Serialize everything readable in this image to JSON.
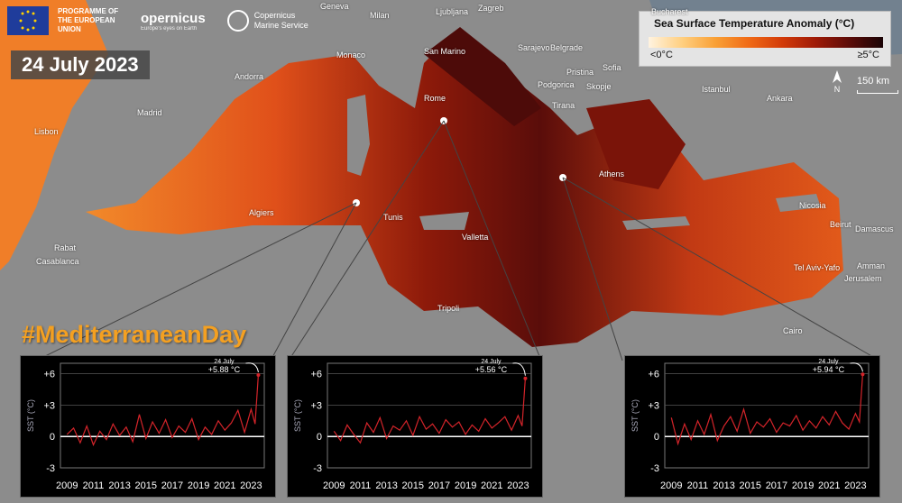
{
  "header": {
    "eu_programme": "PROGRAMME OF THE EUROPEAN UNION",
    "copernicus_name": "opernicus",
    "copernicus_tagline": "Europe's eyes on Earth",
    "cmems_name": "Copernicus Marine Service"
  },
  "date_label": "24 July 2023",
  "hashtag": "#MediterraneanDay",
  "legend": {
    "title": "Sea Surface Temperature Anomaly (°C)",
    "min_label": "<0°C",
    "max_label": "≥5°C",
    "colors": [
      "#fff3e0",
      "#ffcf80",
      "#f9a035",
      "#f06a16",
      "#d23a08",
      "#9e1a07",
      "#5c0c08",
      "#1a0406"
    ]
  },
  "north_label": "N",
  "scale_label": "150 km",
  "cities": [
    {
      "name": "Geneva"
    },
    {
      "name": "Milan"
    },
    {
      "name": "Ljubljana"
    },
    {
      "name": "Zagreb"
    },
    {
      "name": "Bucharest"
    },
    {
      "name": "Belgrade"
    },
    {
      "name": "Sarajevo"
    },
    {
      "name": "San Marino"
    },
    {
      "name": "Monaco"
    },
    {
      "name": "Andorra"
    },
    {
      "name": "Sofia"
    },
    {
      "name": "Pristina"
    },
    {
      "name": "Podgorica"
    },
    {
      "name": "Skopje"
    },
    {
      "name": "Tirana"
    },
    {
      "name": "Istanbul"
    },
    {
      "name": "Ankara"
    },
    {
      "name": "Madrid"
    },
    {
      "name": "Rome"
    },
    {
      "name": "Lisbon"
    },
    {
      "name": "Athens"
    },
    {
      "name": "Algiers"
    },
    {
      "name": "Tunis"
    },
    {
      "name": "Nicosia"
    },
    {
      "name": "Beirut"
    },
    {
      "name": "Damascus"
    },
    {
      "name": "Valletta"
    },
    {
      "name": "Rabat"
    },
    {
      "name": "Casablanca"
    },
    {
      "name": "Tel Aviv-Yafo"
    },
    {
      "name": "Amman"
    },
    {
      "name": "Jerusalem"
    },
    {
      "name": "Tripoli"
    },
    {
      "name": "Cairo"
    }
  ],
  "chart_data": [
    {
      "type": "line",
      "ylabel": "SST (°C)",
      "yticks": [
        "+6",
        "+3",
        "0",
        "-3"
      ],
      "ylim": [
        -3,
        7
      ],
      "xticks": [
        "2009",
        "2011",
        "2013",
        "2015",
        "2017",
        "2019",
        "2021",
        "2023"
      ],
      "xlim": [
        2008.5,
        2024
      ],
      "annotation": {
        "date": "24 July",
        "value_label": "+5.88 °C"
      },
      "series": [
        {
          "color": "#d4242a",
          "x": [
            2009.0,
            2009.5,
            2010.0,
            2010.5,
            2011.0,
            2011.5,
            2012.0,
            2012.5,
            2013.0,
            2013.5,
            2014.0,
            2014.5,
            2015.0,
            2015.5,
            2016.0,
            2016.5,
            2017.0,
            2017.5,
            2018.0,
            2018.5,
            2019.0,
            2019.5,
            2020.0,
            2020.5,
            2021.0,
            2021.5,
            2022.0,
            2022.5,
            2023.0,
            2023.3,
            2023.55
          ],
          "y": [
            0.2,
            0.8,
            -0.6,
            1.0,
            -0.8,
            0.5,
            -0.3,
            1.2,
            0.1,
            0.9,
            -0.5,
            2.1,
            -0.2,
            1.4,
            0.3,
            1.6,
            -0.1,
            1.0,
            0.4,
            1.7,
            -0.3,
            0.9,
            0.2,
            1.5,
            0.6,
            1.3,
            2.5,
            0.4,
            2.6,
            1.2,
            5.88
          ]
        }
      ]
    },
    {
      "type": "line",
      "ylabel": "SST (°C)",
      "yticks": [
        "+6",
        "+3",
        "0",
        "-3"
      ],
      "ylim": [
        -3,
        7
      ],
      "xticks": [
        "2009",
        "2011",
        "2013",
        "2015",
        "2017",
        "2019",
        "2021",
        "2023"
      ],
      "xlim": [
        2008.5,
        2024
      ],
      "annotation": {
        "date": "24 July",
        "value_label": "+5.56 °C"
      },
      "series": [
        {
          "color": "#d4242a",
          "x": [
            2009.0,
            2009.5,
            2010.0,
            2010.5,
            2011.0,
            2011.5,
            2012.0,
            2012.5,
            2013.0,
            2013.5,
            2014.0,
            2014.5,
            2015.0,
            2015.5,
            2016.0,
            2016.5,
            2017.0,
            2017.5,
            2018.0,
            2018.5,
            2019.0,
            2019.5,
            2020.0,
            2020.5,
            2021.0,
            2021.5,
            2022.0,
            2022.5,
            2023.0,
            2023.3,
            2023.55
          ],
          "y": [
            0.5,
            -0.4,
            1.1,
            0.2,
            -0.6,
            1.3,
            0.4,
            1.8,
            -0.2,
            1.0,
            0.6,
            1.5,
            0.1,
            1.9,
            0.7,
            1.2,
            0.3,
            1.6,
            0.9,
            1.4,
            0.2,
            1.1,
            0.5,
            1.7,
            0.8,
            1.3,
            1.9,
            0.6,
            2.0,
            1.0,
            5.56
          ]
        }
      ]
    },
    {
      "type": "line",
      "ylabel": "SST (°C)",
      "yticks": [
        "+6",
        "+3",
        "0",
        "-3"
      ],
      "ylim": [
        -3,
        7
      ],
      "xticks": [
        "2009",
        "2011",
        "2013",
        "2015",
        "2017",
        "2019",
        "2021",
        "2023"
      ],
      "xlim": [
        2008.5,
        2024
      ],
      "annotation": {
        "date": "24 July",
        "value_label": "+5.94 °C"
      },
      "series": [
        {
          "color": "#d4242a",
          "x": [
            2009.0,
            2009.5,
            2010.0,
            2010.5,
            2011.0,
            2011.5,
            2012.0,
            2012.5,
            2013.0,
            2013.5,
            2014.0,
            2014.5,
            2015.0,
            2015.5,
            2016.0,
            2016.5,
            2017.0,
            2017.5,
            2018.0,
            2018.5,
            2019.0,
            2019.5,
            2020.0,
            2020.5,
            2021.0,
            2021.5,
            2022.0,
            2022.5,
            2023.0,
            2023.3,
            2023.55
          ],
          "y": [
            1.8,
            -0.7,
            1.2,
            -0.3,
            1.5,
            0.2,
            2.1,
            -0.4,
            1.0,
            1.9,
            0.5,
            2.6,
            0.3,
            1.4,
            0.9,
            1.7,
            0.4,
            1.3,
            1.0,
            2.0,
            0.6,
            1.5,
            0.8,
            1.9,
            1.1,
            2.4,
            1.3,
            0.7,
            2.2,
            1.4,
            5.94
          ]
        }
      ]
    }
  ]
}
